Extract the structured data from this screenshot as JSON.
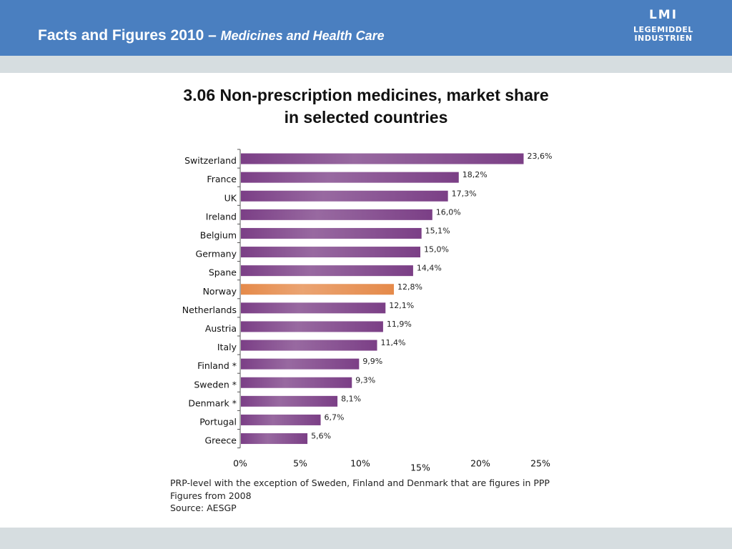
{
  "header": {
    "title": "Facts and Figures 2010 –",
    "subtitle": "Medicines and Health Care"
  },
  "logo": {
    "line1": "LMI",
    "line2": "LEGEMIDDEL",
    "line3": "INDUSTRIEN"
  },
  "chart_title": {
    "line1": "3.06 Non-prescription medicines, market share",
    "line2": "in selected countries"
  },
  "notes": {
    "line1": "PRP-level with the exception of Sweden, Finland and Denmark that are figures in PPP",
    "line2": "Figures from 2008",
    "line3": "Source: AESGP"
  },
  "colors": {
    "bar": "#7b3f86",
    "bar_highlight": "#e58a4a",
    "header_bg": "#4a7fc0",
    "band": "#d6dde0"
  },
  "chart_data": {
    "type": "bar",
    "orientation": "horizontal",
    "title": "3.06 Non-prescription medicines, market share in selected countries",
    "categories": [
      "Switzerland",
      "France",
      "UK",
      "Ireland",
      "Belgium",
      "Germany",
      "Spane",
      "Norway",
      "Netherlands",
      "Austria",
      "Italy",
      "Finland *",
      "Sweden *",
      "Denmark *",
      "Portugal",
      "Greece"
    ],
    "values": [
      23.6,
      18.2,
      17.3,
      16.0,
      15.1,
      15.0,
      14.4,
      12.8,
      12.1,
      11.9,
      11.4,
      9.9,
      9.3,
      8.1,
      6.7,
      5.6
    ],
    "data_labels": [
      "23,6%",
      "18,2%",
      "17,3%",
      "16,0%",
      "15,1%",
      "15,0%",
      "14,4%",
      "12,8%",
      "12,1%",
      "11,9%",
      "11,4%",
      "9,9%",
      "9,3%",
      "8,1%",
      "6,7%",
      "5,6%"
    ],
    "highlight": "Norway",
    "xlim": [
      0,
      25
    ],
    "x_ticks": [
      0,
      5,
      10,
      15,
      20,
      25
    ],
    "x_tick_labels": [
      "0%",
      "5%",
      "10%",
      "15%",
      "20%",
      "25%"
    ],
    "grid": false,
    "legend": "none"
  }
}
